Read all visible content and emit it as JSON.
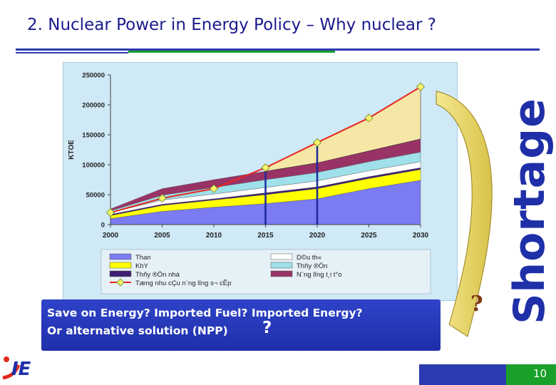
{
  "slide": {
    "title": "2. Nuclear Power in Energy Policy – Why nuclear ?",
    "caption_line1": "Save on Energy? Imported Fuel? Imported Energy?",
    "caption_line2": "Or alternative solution (NPP)",
    "caption_qmark": "?",
    "arrow_label": "Shortage",
    "arrow_qmark": "?",
    "page_number": "10",
    "logo_text": "IE"
  },
  "colors": {
    "title": "#1a1a8c",
    "accent_blue": "#2b3bb0",
    "accent_green": "#19a02a",
    "chart_background": "#cfe9f6",
    "shortage_fill": "#f6e7a6",
    "arrow_fill": "#f0e28a",
    "demand_line": "#e8251f",
    "marker_fill": "#f7f26a"
  },
  "chart_data": {
    "type": "area",
    "x": [
      2000,
      2005,
      2010,
      2015,
      2020,
      2025,
      2030
    ],
    "xlim": [
      2000,
      2030
    ],
    "ylim": [
      0,
      250000
    ],
    "yticks": [
      "250000",
      "200000",
      "150000",
      "100000",
      "50000",
      "0"
    ],
    "yticks_values": [
      250000,
      200000,
      150000,
      100000,
      50000,
      0
    ],
    "xticks": [
      "2000",
      "2005",
      "2010",
      "2015",
      "2020",
      "2025",
      "2030"
    ],
    "ylabel": "KTOE",
    "grid": false,
    "legend_placement": "bottom",
    "series": [
      {
        "name": "Than",
        "color": "#7b7bf2",
        "values": [
          10000,
          22000,
          29000,
          35000,
          43000,
          60000,
          74000
        ]
      },
      {
        "name": "KhY",
        "color": "#ffff00",
        "values": [
          5000,
          10000,
          12000,
          15000,
          17000,
          17000,
          18000
        ]
      },
      {
        "name": "Thñy ®Ön nhá",
        "color": "#3f1f73",
        "values": [
          2000,
          2000,
          2000,
          3000,
          3000,
          3000,
          3000
        ]
      },
      {
        "name": "D©u th«",
        "color": "#ffffff",
        "values": [
          3000,
          7000,
          8000,
          9000,
          10000,
          10000,
          10000
        ]
      },
      {
        "name": "Thñy ®Ön",
        "color": "#9fe0ea",
        "values": [
          3000,
          8000,
          11000,
          13000,
          14000,
          15000,
          16000
        ]
      },
      {
        "name": "N¨ng l­îng t¸i t°o",
        "color": "#993366",
        "values": [
          3000,
          11000,
          13000,
          14000,
          16000,
          18000,
          22000
        ]
      }
    ],
    "demand": {
      "name": "Tæng nhu cÇu n¨ng l­îng s¬ cÊp",
      "color": "#e8251f",
      "values": [
        20000,
        44000,
        60000,
        95000,
        137000,
        178000,
        230000
      ]
    },
    "vertical_markers": [
      2015,
      2020
    ],
    "shortage_region": {
      "from": 2015,
      "to": 2030
    }
  }
}
